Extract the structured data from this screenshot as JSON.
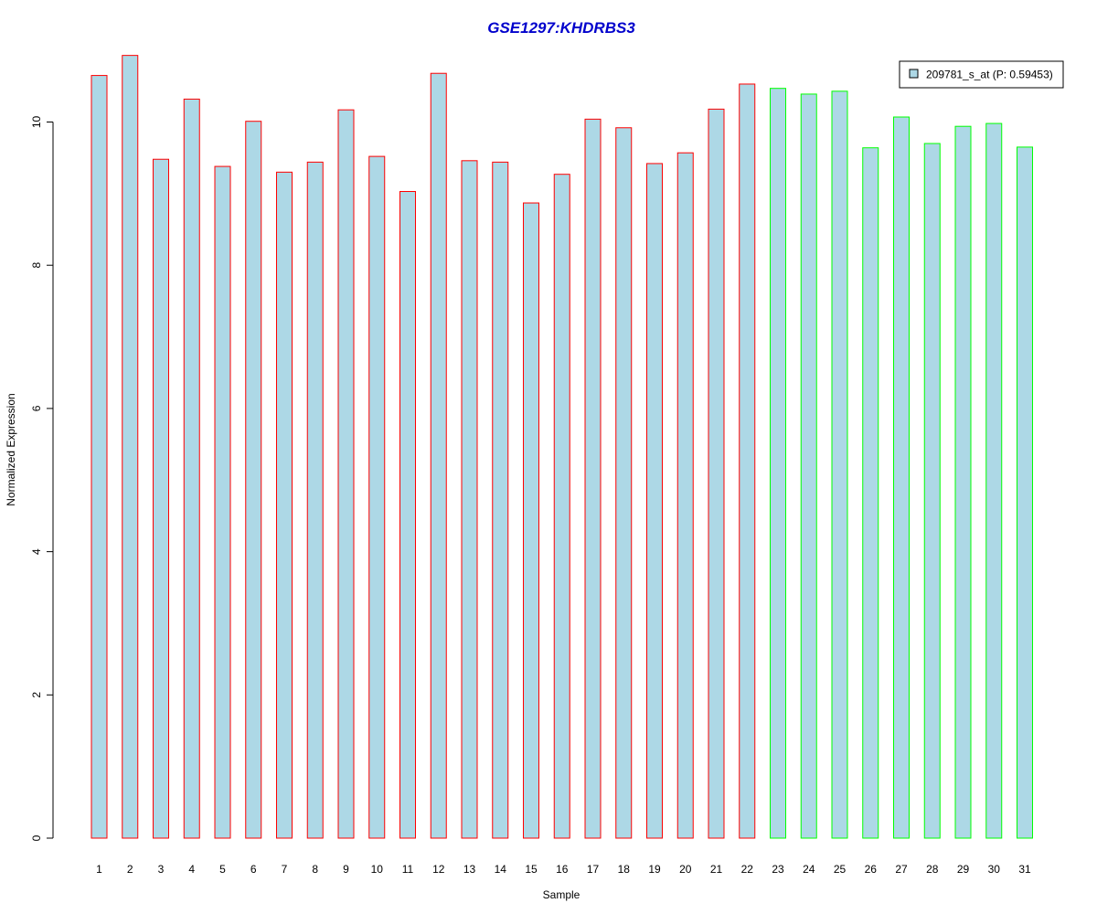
{
  "chart_data": {
    "type": "bar",
    "title": "GSE1297:KHDRBS3",
    "xlabel": "Sample",
    "ylabel": "Normalized Expression",
    "categories": [
      "1",
      "2",
      "3",
      "4",
      "5",
      "6",
      "7",
      "8",
      "9",
      "10",
      "11",
      "12",
      "13",
      "14",
      "15",
      "16",
      "17",
      "18",
      "19",
      "20",
      "21",
      "22",
      "23",
      "24",
      "25",
      "26",
      "27",
      "28",
      "29",
      "30",
      "31"
    ],
    "series": [
      {
        "name": "209781_s_at (P: 0.59453)",
        "values": [
          10.65,
          10.93,
          9.48,
          10.32,
          9.38,
          10.01,
          9.3,
          9.44,
          10.17,
          9.52,
          9.03,
          10.68,
          9.46,
          9.44,
          8.87,
          9.27,
          10.04,
          9.92,
          9.42,
          9.57,
          10.18,
          10.53,
          10.47,
          10.39,
          10.43,
          9.64,
          10.07,
          9.7,
          9.94,
          9.98,
          9.65
        ]
      }
    ],
    "groups": [
      {
        "samples": [
          1,
          22
        ],
        "border_color": "#FF0000"
      },
      {
        "samples": [
          23,
          31
        ],
        "border_color": "#00FF00"
      }
    ],
    "fill_color": "#ADD8E6",
    "title_color": "#0000CC",
    "ylim": [
      0,
      11
    ],
    "yticks": [
      0,
      2,
      4,
      6,
      8,
      10
    ],
    "grid": false,
    "legend_position": "top-right"
  }
}
